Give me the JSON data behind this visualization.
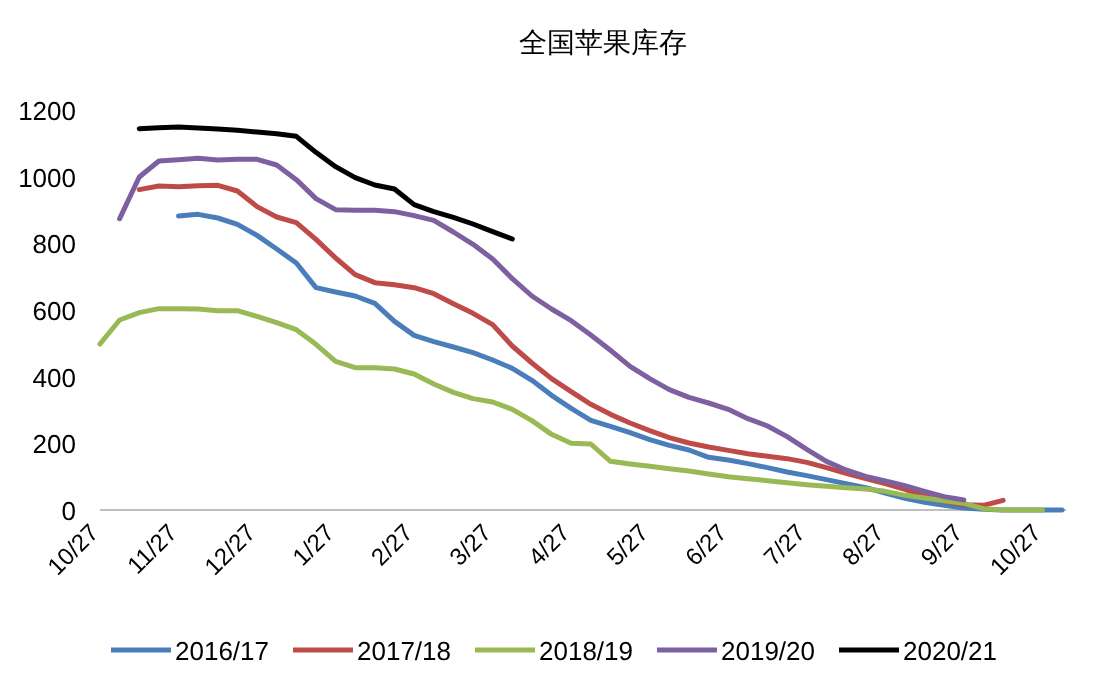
{
  "chart_data": {
    "type": "line",
    "title": "全国苹果库存",
    "categories": [
      "10/27",
      null,
      null,
      null,
      "11/27",
      null,
      null,
      null,
      "12/27",
      null,
      null,
      null,
      "1/27",
      null,
      null,
      null,
      "2/27",
      null,
      null,
      null,
      "3/27",
      null,
      null,
      null,
      "4/27",
      null,
      null,
      null,
      "5/27",
      null,
      null,
      null,
      "6/27",
      null,
      null,
      null,
      "7/27",
      null,
      null,
      null,
      "8/27",
      null,
      null,
      null,
      "9/27",
      null,
      null,
      null,
      "10/27",
      null
    ],
    "ylim": [
      0,
      1200
    ],
    "yticks": [
      0,
      200,
      400,
      600,
      800,
      1000,
      1200
    ],
    "grid": false,
    "legend": "bottom",
    "marker": "none",
    "line_style": "solid",
    "series": [
      {
        "name": "2016/17",
        "color": "#4a7ebb",
        "values": [
          null,
          null,
          null,
          null,
          882,
          887,
          876,
          857,
          824,
          783,
          741,
          667,
          654,
          642,
          620,
          566,
          524,
          505,
          489,
          472,
          450,
          425,
          389,
          344,
          305,
          269,
          251,
          232,
          211,
          194,
          180,
          158,
          150,
          139,
          127,
          114,
          103,
          91,
          79,
          67,
          51,
          35,
          23,
          14,
          6,
          2,
          0,
          0,
          0,
          0
        ]
      },
      {
        "name": "2017/18",
        "color": "#be4b48",
        "values": [
          null,
          null,
          961,
          972,
          970,
          973,
          974,
          957,
          910,
          879,
          862,
          812,
          756,
          706,
          682,
          676,
          667,
          649,
          619,
          590,
          556,
          492,
          441,
          394,
          355,
          317,
          287,
          261,
          238,
          217,
          201,
          189,
          179,
          169,
          161,
          154,
          143,
          127,
          110,
          94,
          79,
          62,
          42,
          26,
          16,
          14,
          29,
          null,
          null,
          null
        ]
      },
      {
        "name": "2018/19",
        "color": "#98b954",
        "values": [
          498,
          570,
          592,
          604,
          604,
          603,
          598,
          598,
          581,
          562,
          541,
          497,
          446,
          427,
          427,
          423,
          408,
          378,
          353,
          334,
          324,
          302,
          268,
          227,
          200,
          198,
          146,
          138,
          131,
          124,
          117,
          108,
          100,
          94,
          88,
          82,
          76,
          71,
          67,
          63,
          56,
          44,
          36,
          28,
          20,
          4,
          0,
          0,
          0,
          null
        ]
      },
      {
        "name": "2019/20",
        "color": "#7d60a0",
        "values": [
          null,
          874,
          999,
          1047,
          1051,
          1055,
          1050,
          1052,
          1052,
          1035,
          991,
          934,
          901,
          899,
          899,
          895,
          883,
          869,
          834,
          797,
          753,
          694,
          642,
          603,
          568,
          525,
          479,
          431,
          394,
          361,
          338,
          321,
          302,
          274,
          252,
          220,
          182,
          146,
          120,
          101,
          87,
          73,
          56,
          40,
          30,
          null,
          null,
          null,
          null,
          null
        ]
      },
      {
        "name": "2020/21",
        "color": "#000000",
        "values": [
          null,
          null,
          1144,
          1147,
          1149,
          1146,
          1143,
          1139,
          1134,
          1129,
          1121,
          1073,
          1030,
          997,
          975,
          963,
          916,
          895,
          878,
          858,
          835,
          813,
          null,
          null,
          null,
          null,
          null,
          null,
          null,
          null,
          null,
          null,
          null,
          null,
          null,
          null,
          null,
          null,
          null,
          null,
          null,
          null,
          null,
          null,
          null,
          null,
          null,
          null,
          null,
          null
        ]
      }
    ]
  }
}
